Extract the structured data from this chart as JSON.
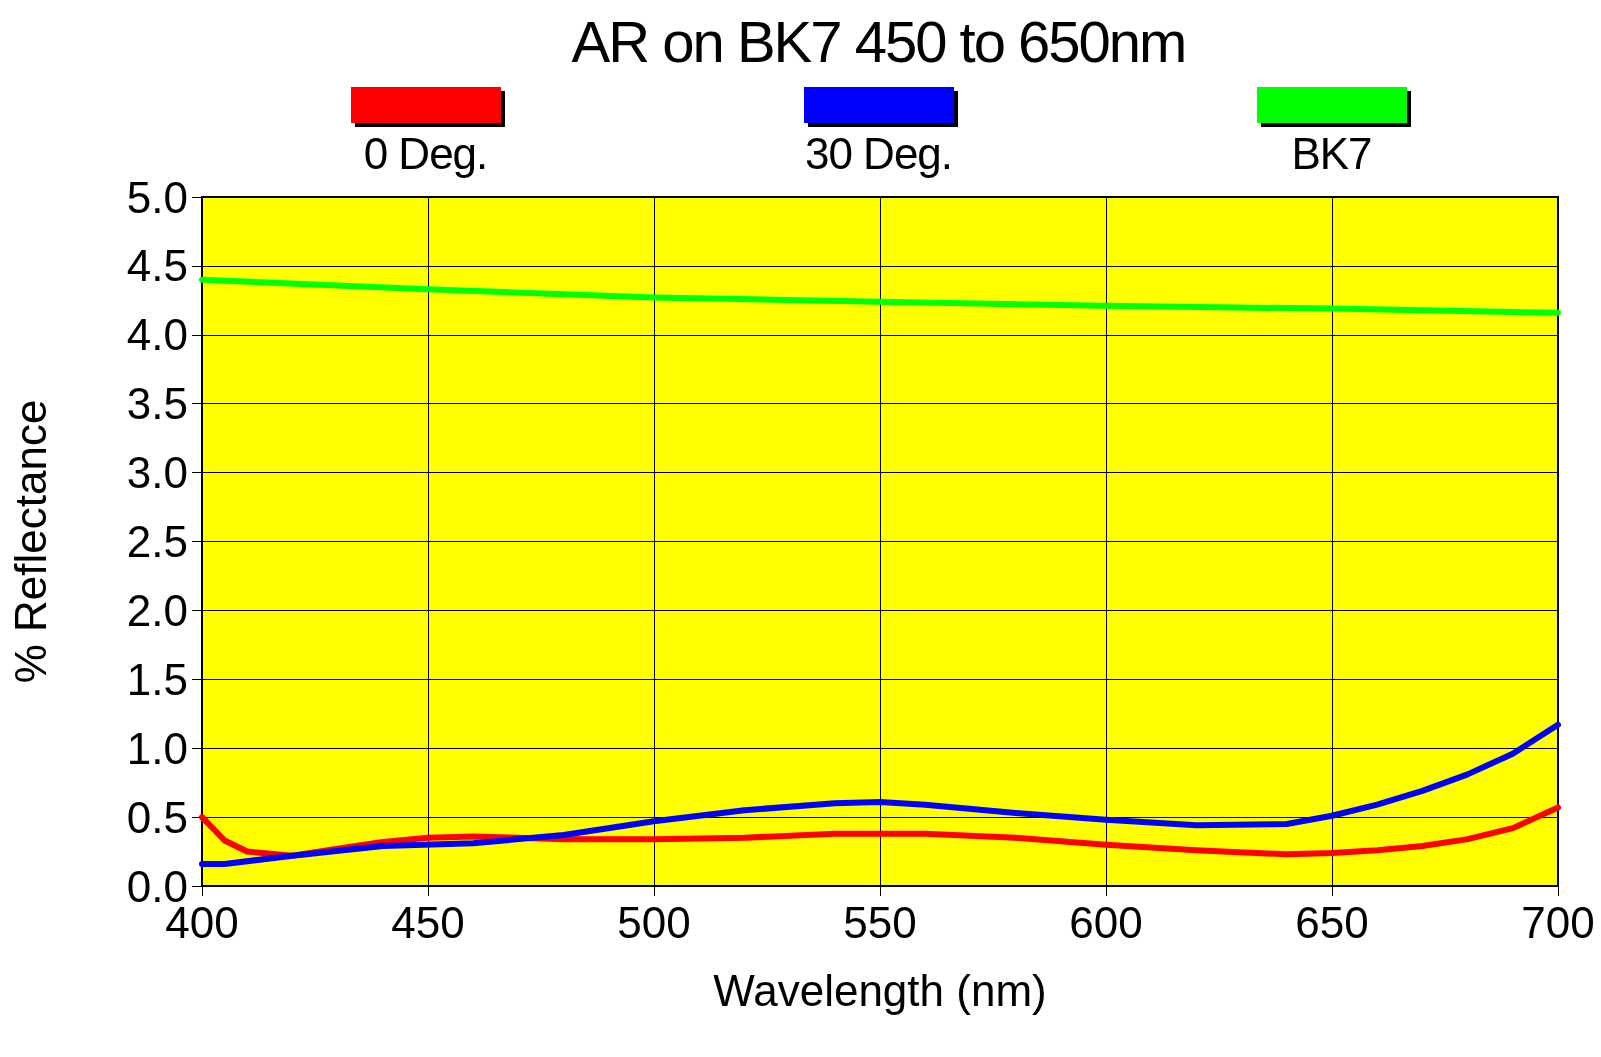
{
  "chart_data": {
    "type": "line",
    "title": "AR on BK7 450 to 650nm",
    "xlabel": "Wavelength (nm)",
    "ylabel": "% Reflectance",
    "xlim": [
      400,
      700
    ],
    "xticks": [
      400,
      450,
      500,
      550,
      600,
      650,
      700
    ],
    "ylim": [
      0,
      5
    ],
    "yticks": [
      {
        "value": 0,
        "label": "0.0"
      },
      {
        "value": 0.5,
        "label": "0.5"
      },
      {
        "value": 1,
        "label": "1.0"
      },
      {
        "value": 1.5,
        "label": "1.5"
      },
      {
        "value": 2,
        "label": "2.0"
      },
      {
        "value": 2.5,
        "label": "2.5"
      },
      {
        "value": 3,
        "label": "3.0"
      },
      {
        "value": 3.5,
        "label": "3.5"
      },
      {
        "value": 4,
        "label": "4.0"
      },
      {
        "value": 4.5,
        "label": "4.5"
      },
      {
        "value": 5,
        "label": "5.0"
      }
    ],
    "grid": true,
    "legend": "top",
    "marker": "none",
    "line_style": "solid",
    "series": [
      {
        "name": "0 Deg.",
        "color": "#ff0000",
        "x": [
          400,
          405,
          410,
          420,
          430,
          440,
          450,
          460,
          470,
          480,
          500,
          520,
          540,
          560,
          580,
          600,
          620,
          640,
          650,
          660,
          670,
          680,
          690,
          700
        ],
        "values": [
          0.5,
          0.33,
          0.25,
          0.22,
          0.27,
          0.32,
          0.35,
          0.36,
          0.35,
          0.34,
          0.34,
          0.35,
          0.38,
          0.38,
          0.35,
          0.3,
          0.26,
          0.23,
          0.24,
          0.26,
          0.29,
          0.34,
          0.42,
          0.57
        ]
      },
      {
        "name": "30 Deg.",
        "color": "#0000ff",
        "x": [
          400,
          405,
          420,
          440,
          460,
          480,
          500,
          520,
          540,
          550,
          560,
          580,
          600,
          620,
          640,
          650,
          660,
          670,
          680,
          690,
          700
        ],
        "values": [
          0.16,
          0.16,
          0.22,
          0.29,
          0.31,
          0.37,
          0.47,
          0.55,
          0.6,
          0.61,
          0.59,
          0.53,
          0.48,
          0.44,
          0.45,
          0.51,
          0.59,
          0.69,
          0.81,
          0.96,
          1.17
        ]
      },
      {
        "name": "BK7",
        "color": "#00ff00",
        "x": [
          400,
          450,
          500,
          550,
          600,
          650,
          700
        ],
        "values": [
          4.4,
          4.33,
          4.27,
          4.24,
          4.21,
          4.19,
          4.16
        ]
      }
    ]
  }
}
